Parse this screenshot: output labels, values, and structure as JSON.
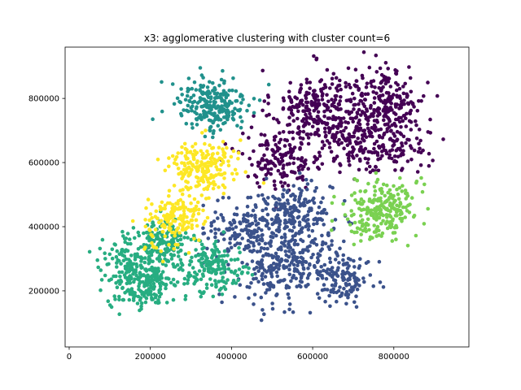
{
  "chart_data": {
    "type": "scatter",
    "title": "x3: agglomerative clustering with cluster count=6",
    "xlabel": "",
    "ylabel": "",
    "xlim": [
      -10000,
      985000
    ],
    "ylim": [
      25000,
      960000
    ],
    "x_ticks": [
      0,
      200000,
      400000,
      600000,
      800000
    ],
    "x_tick_labels": [
      "0",
      "200000",
      "400000",
      "600000",
      "800000"
    ],
    "y_ticks": [
      200000,
      400000,
      600000,
      800000
    ],
    "y_tick_labels": [
      "200000",
      "400000",
      "600000",
      "800000"
    ],
    "grid": false,
    "legend": "none",
    "clusters": [
      {
        "label": 0,
        "color": "#440154",
        "centers": [
          [
            610000,
            770000
          ],
          [
            780000,
            790000
          ],
          [
            520000,
            610000
          ],
          [
            780000,
            660000
          ],
          [
            660000,
            690000
          ]
        ],
        "spread": [
          [
            55000,
            60000
          ],
          [
            50000,
            55000
          ],
          [
            50000,
            45000
          ],
          [
            50000,
            45000
          ],
          [
            80000,
            60000
          ]
        ],
        "count": [
          230,
          210,
          150,
          150,
          120
        ]
      },
      {
        "label": 1,
        "color": "#3b528b",
        "centers": [
          [
            550000,
            440000
          ],
          [
            430000,
            390000
          ],
          [
            560000,
            300000
          ],
          [
            680000,
            240000
          ],
          [
            490000,
            230000
          ]
        ],
        "spread": [
          [
            50000,
            45000
          ],
          [
            45000,
            45000
          ],
          [
            60000,
            55000
          ],
          [
            35000,
            35000
          ],
          [
            50000,
            50000
          ]
        ],
        "count": [
          190,
          150,
          190,
          120,
          80
        ]
      },
      {
        "label": 2,
        "color": "#21918c",
        "centers": [
          [
            350000,
            780000
          ]
        ],
        "spread": [
          [
            45000,
            45000
          ]
        ],
        "count": [
          230
        ]
      },
      {
        "label": 3,
        "color": "#27ad81",
        "centers": [
          [
            180000,
            220000
          ],
          [
            230000,
            350000
          ],
          [
            360000,
            270000
          ],
          [
            130000,
            300000
          ]
        ],
        "spread": [
          [
            40000,
            40000
          ],
          [
            35000,
            35000
          ],
          [
            40000,
            40000
          ],
          [
            40000,
            40000
          ]
        ],
        "count": [
          220,
          150,
          170,
          80
        ]
      },
      {
        "label": 4,
        "color": "#7ad151",
        "centers": [
          [
            780000,
            470000
          ],
          [
            740000,
            400000
          ]
        ],
        "spread": [
          [
            40000,
            40000
          ],
          [
            45000,
            40000
          ]
        ],
        "count": [
          190,
          50
        ]
      },
      {
        "label": 5,
        "color": "#fde725",
        "centers": [
          [
            330000,
            590000
          ],
          [
            270000,
            440000
          ],
          [
            240000,
            400000
          ]
        ],
        "spread": [
          [
            40000,
            40000
          ],
          [
            35000,
            35000
          ],
          [
            30000,
            50000
          ]
        ],
        "count": [
          200,
          100,
          60
        ]
      }
    ]
  }
}
